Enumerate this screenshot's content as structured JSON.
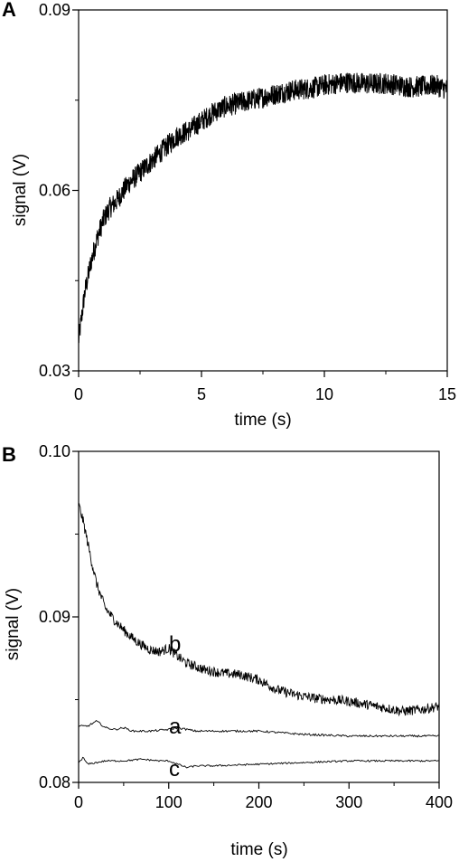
{
  "chart_data": [
    {
      "panel": "A",
      "type": "line",
      "xlabel": "time (s)",
      "ylabel": "signal (V)",
      "xlim": [
        0,
        15
      ],
      "ylim": [
        0.03,
        0.09
      ],
      "xticks": [
        "0",
        "5",
        "10",
        "15"
      ],
      "yticks": [
        "0.03",
        "0.06",
        "0.09"
      ],
      "noise_amplitude": 0.0018,
      "series": [
        {
          "x": [
            0,
            0.25,
            0.5,
            0.75,
            1,
            1.25,
            1.5,
            2,
            2.5,
            3,
            3.5,
            4,
            4.5,
            5,
            5.5,
            6,
            6.5,
            7,
            7.5,
            8,
            8.5,
            9,
            9.5,
            10,
            10.5,
            11,
            11.5,
            12,
            12.5,
            13,
            13.5,
            14,
            14.5,
            15
          ],
          "values": [
            0.035,
            0.043,
            0.048,
            0.052,
            0.055,
            0.057,
            0.058,
            0.061,
            0.063,
            0.065,
            0.067,
            0.069,
            0.07,
            0.0715,
            0.073,
            0.074,
            0.0745,
            0.075,
            0.0755,
            0.076,
            0.0765,
            0.0768,
            0.077,
            0.0775,
            0.0778,
            0.078,
            0.0778,
            0.0777,
            0.0778,
            0.0775,
            0.0772,
            0.0773,
            0.0775,
            0.0768
          ]
        }
      ]
    },
    {
      "panel": "B",
      "type": "line",
      "xlabel": "time (s)",
      "ylabel": "signal (V)",
      "xlim": [
        0,
        400
      ],
      "ylim": [
        0.08,
        0.1
      ],
      "xticks": [
        "0",
        "100",
        "200",
        "300",
        "400"
      ],
      "yticks": [
        "0.08",
        "0.09",
        "0.10"
      ],
      "series": [
        {
          "label": "b",
          "noise_amplitude": 0.0003,
          "x": [
            0,
            5,
            10,
            15,
            20,
            25,
            30,
            40,
            50,
            60,
            70,
            80,
            90,
            100,
            110,
            120,
            140,
            160,
            180,
            200,
            220,
            240,
            260,
            280,
            300,
            320,
            340,
            360,
            380,
            400
          ],
          "values": [
            0.0968,
            0.0958,
            0.0945,
            0.0932,
            0.092,
            0.0912,
            0.0905,
            0.0898,
            0.0892,
            0.0887,
            0.0883,
            0.088,
            0.0879,
            0.0881,
            0.0876,
            0.0872,
            0.0868,
            0.0866,
            0.0865,
            0.0862,
            0.0856,
            0.0853,
            0.0851,
            0.085,
            0.0849,
            0.0847,
            0.0845,
            0.0843,
            0.0844,
            0.0846
          ]
        },
        {
          "label": "a",
          "noise_amplitude": 6e-05,
          "x": [
            0,
            10,
            20,
            30,
            40,
            50,
            60,
            80,
            100,
            110,
            130,
            160,
            200,
            250,
            300,
            350,
            400
          ],
          "values": [
            0.0834,
            0.0834,
            0.0837,
            0.0833,
            0.0832,
            0.0833,
            0.0831,
            0.0831,
            0.0832,
            0.0833,
            0.0831,
            0.0831,
            0.0831,
            0.0829,
            0.0828,
            0.0828,
            0.0828
          ]
        },
        {
          "label": "c",
          "noise_amplitude": 5e-05,
          "x": [
            0,
            5,
            10,
            20,
            30,
            50,
            70,
            90,
            100,
            110,
            120,
            130,
            150,
            200,
            250,
            300,
            350,
            400
          ],
          "values": [
            0.0812,
            0.0815,
            0.0811,
            0.0812,
            0.0813,
            0.0813,
            0.0814,
            0.0813,
            0.0813,
            0.0811,
            0.0809,
            0.081,
            0.081,
            0.0811,
            0.0812,
            0.0813,
            0.0813,
            0.0813
          ]
        }
      ]
    }
  ]
}
